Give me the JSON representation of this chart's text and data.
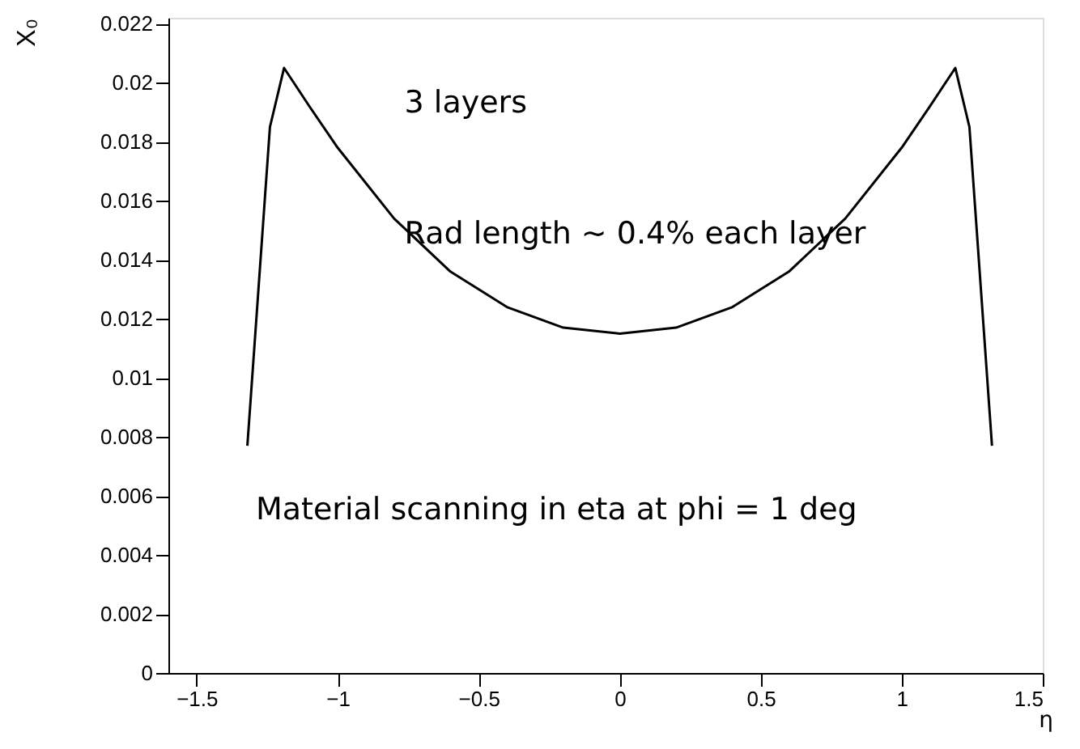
{
  "chart_data": {
    "type": "line",
    "xlabel": "η",
    "ylabel": "X₀",
    "x": [
      -1.32,
      -1.24,
      -1.19,
      -1.1,
      -1.0,
      -0.8,
      -0.6,
      -0.4,
      -0.2,
      0,
      0.2,
      0.4,
      0.6,
      0.8,
      1.0,
      1.1,
      1.19,
      1.24,
      1.32
    ],
    "series": [
      {
        "color": "#000000",
        "values": [
          0.0077,
          0.0185,
          0.0205,
          0.0192,
          0.0178,
          0.0154,
          0.0136,
          0.0124,
          0.0117,
          0.0115,
          0.0117,
          0.0124,
          0.0136,
          0.0154,
          0.0178,
          0.0192,
          0.0205,
          0.0185,
          0.0077
        ]
      }
    ],
    "xlim": [
      -1.6,
      1.5
    ],
    "xticks": [
      -1.5,
      -1,
      -0.5,
      0,
      0.5,
      1,
      1.5
    ],
    "ylim": [
      0,
      0.0222
    ],
    "yticks": [
      0,
      0.002,
      0.004,
      0.006,
      0.008,
      0.01,
      0.012,
      0.014,
      0.016,
      0.018,
      0.02,
      0.022
    ],
    "grid": false,
    "marker": "none",
    "line_style": "solid",
    "annotations": [
      "3 layers",
      "Rad length ~ 0.4% each layer",
      "Material scanning in eta at phi = 1 deg"
    ]
  }
}
